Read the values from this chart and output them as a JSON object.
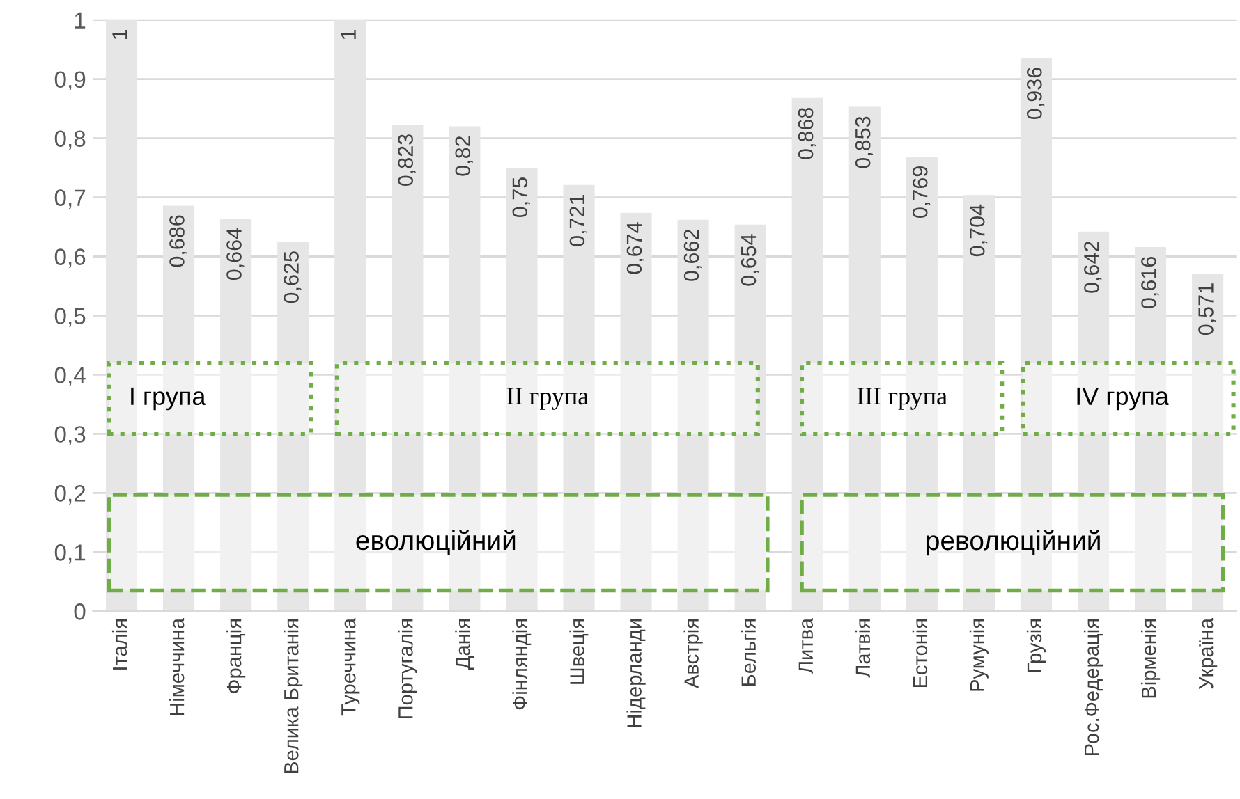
{
  "chart_data": {
    "type": "bar",
    "categories": [
      "Італія",
      "Німеччина",
      "Франція",
      "Велика Британія",
      "Туреччина",
      "Португалія",
      "Данія",
      "Фінляндія",
      "Швеція",
      "Нідерланди",
      "Австрія",
      "Бельгія",
      "Литва",
      "Латвія",
      "Естонія",
      "Румунія",
      "Грузія",
      "Рос.Федерація",
      "Вірменія",
      "Україна"
    ],
    "values": [
      1,
      0.686,
      0.664,
      0.625,
      1,
      0.823,
      0.82,
      0.75,
      0.721,
      0.674,
      0.662,
      0.654,
      0.868,
      0.853,
      0.769,
      0.704,
      0.936,
      0.642,
      0.616,
      0.571
    ],
    "value_labels": [
      "1",
      "0,686",
      "0,664",
      "0,625",
      "1",
      "0,823",
      "0,82",
      "0,75",
      "0,721",
      "0,674",
      "0,662",
      "0,654",
      "0,868",
      "0,853",
      "0,769",
      "0,704",
      "0,936",
      "0,642",
      "0,616",
      "0,571"
    ],
    "color": "#e6e6e6",
    "ylim": [
      0,
      1
    ],
    "yticks": [
      {
        "value": 0,
        "label": "0"
      },
      {
        "value": 0.1,
        "label": "0,1"
      },
      {
        "value": 0.2,
        "label": "0,2"
      },
      {
        "value": 0.3,
        "label": "0,3"
      },
      {
        "value": 0.4,
        "label": "0,4"
      },
      {
        "value": 0.5,
        "label": "0,5"
      },
      {
        "value": 0.6,
        "label": "0,6"
      },
      {
        "value": 0.7,
        "label": "0,7"
      },
      {
        "value": 0.8,
        "label": "0,8"
      },
      {
        "value": 0.9,
        "label": "0,9"
      },
      {
        "value": 1,
        "label": "1"
      }
    ],
    "grid": "y",
    "annotations": [
      "I група",
      "II група",
      "III група",
      "IV група",
      "еволюційний",
      "революційний"
    ]
  }
}
